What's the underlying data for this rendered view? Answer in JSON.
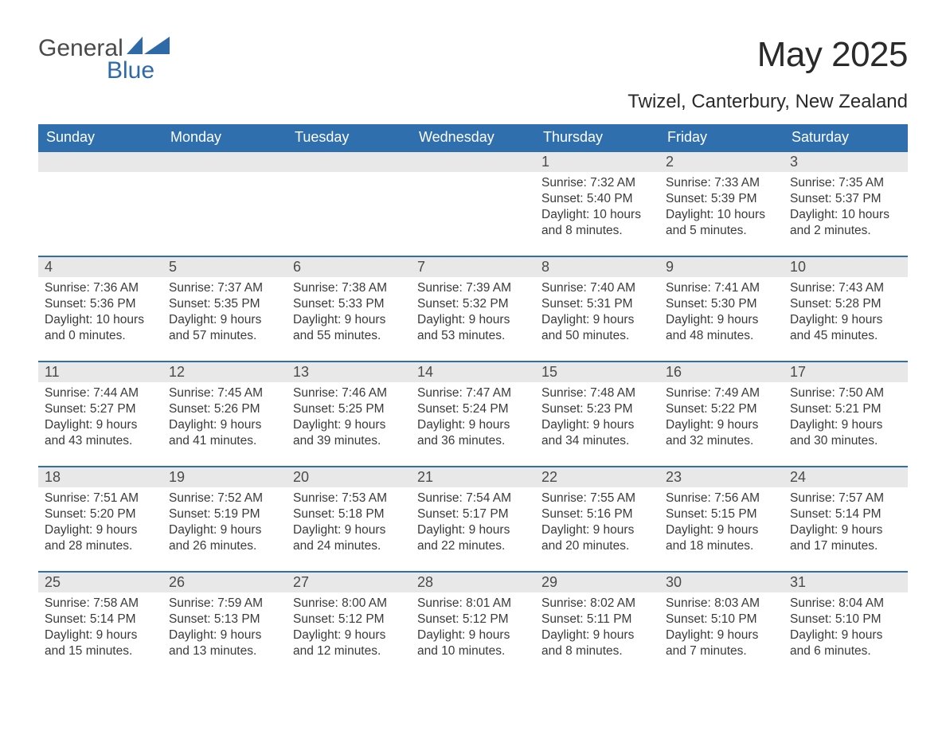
{
  "brand": {
    "word1": "General",
    "word2": "Blue"
  },
  "title": "May 2025",
  "location": "Twizel, Canterbury, New Zealand",
  "colors": {
    "header_bg": "#2f6fae",
    "header_text": "#ffffff",
    "row_border": "#2f6fae",
    "daynum_bg": "#e8e8e8",
    "daynum_text": "#4a4a4a",
    "body_text": "#3a3a3a",
    "page_bg": "#ffffff",
    "logo_gray": "#4a4a4a",
    "logo_blue": "#2f6aa8"
  },
  "typography": {
    "title_fontsize": 44,
    "location_fontsize": 24,
    "header_fontsize": 18,
    "daynum_fontsize": 18,
    "body_fontsize": 15.5,
    "font_family": "Arial"
  },
  "weekdays": [
    "Sunday",
    "Monday",
    "Tuesday",
    "Wednesday",
    "Thursday",
    "Friday",
    "Saturday"
  ],
  "labels": {
    "sunrise": "Sunrise: ",
    "sunset": "Sunset: ",
    "daylight": "Daylight: "
  },
  "weeks": [
    [
      null,
      null,
      null,
      null,
      {
        "day": "1",
        "sunrise": "7:32 AM",
        "sunset": "5:40 PM",
        "daylight": "10 hours and 8 minutes."
      },
      {
        "day": "2",
        "sunrise": "7:33 AM",
        "sunset": "5:39 PM",
        "daylight": "10 hours and 5 minutes."
      },
      {
        "day": "3",
        "sunrise": "7:35 AM",
        "sunset": "5:37 PM",
        "daylight": "10 hours and 2 minutes."
      }
    ],
    [
      {
        "day": "4",
        "sunrise": "7:36 AM",
        "sunset": "5:36 PM",
        "daylight": "10 hours and 0 minutes."
      },
      {
        "day": "5",
        "sunrise": "7:37 AM",
        "sunset": "5:35 PM",
        "daylight": "9 hours and 57 minutes."
      },
      {
        "day": "6",
        "sunrise": "7:38 AM",
        "sunset": "5:33 PM",
        "daylight": "9 hours and 55 minutes."
      },
      {
        "day": "7",
        "sunrise": "7:39 AM",
        "sunset": "5:32 PM",
        "daylight": "9 hours and 53 minutes."
      },
      {
        "day": "8",
        "sunrise": "7:40 AM",
        "sunset": "5:31 PM",
        "daylight": "9 hours and 50 minutes."
      },
      {
        "day": "9",
        "sunrise": "7:41 AM",
        "sunset": "5:30 PM",
        "daylight": "9 hours and 48 minutes."
      },
      {
        "day": "10",
        "sunrise": "7:43 AM",
        "sunset": "5:28 PM",
        "daylight": "9 hours and 45 minutes."
      }
    ],
    [
      {
        "day": "11",
        "sunrise": "7:44 AM",
        "sunset": "5:27 PM",
        "daylight": "9 hours and 43 minutes."
      },
      {
        "day": "12",
        "sunrise": "7:45 AM",
        "sunset": "5:26 PM",
        "daylight": "9 hours and 41 minutes."
      },
      {
        "day": "13",
        "sunrise": "7:46 AM",
        "sunset": "5:25 PM",
        "daylight": "9 hours and 39 minutes."
      },
      {
        "day": "14",
        "sunrise": "7:47 AM",
        "sunset": "5:24 PM",
        "daylight": "9 hours and 36 minutes."
      },
      {
        "day": "15",
        "sunrise": "7:48 AM",
        "sunset": "5:23 PM",
        "daylight": "9 hours and 34 minutes."
      },
      {
        "day": "16",
        "sunrise": "7:49 AM",
        "sunset": "5:22 PM",
        "daylight": "9 hours and 32 minutes."
      },
      {
        "day": "17",
        "sunrise": "7:50 AM",
        "sunset": "5:21 PM",
        "daylight": "9 hours and 30 minutes."
      }
    ],
    [
      {
        "day": "18",
        "sunrise": "7:51 AM",
        "sunset": "5:20 PM",
        "daylight": "9 hours and 28 minutes."
      },
      {
        "day": "19",
        "sunrise": "7:52 AM",
        "sunset": "5:19 PM",
        "daylight": "9 hours and 26 minutes."
      },
      {
        "day": "20",
        "sunrise": "7:53 AM",
        "sunset": "5:18 PM",
        "daylight": "9 hours and 24 minutes."
      },
      {
        "day": "21",
        "sunrise": "7:54 AM",
        "sunset": "5:17 PM",
        "daylight": "9 hours and 22 minutes."
      },
      {
        "day": "22",
        "sunrise": "7:55 AM",
        "sunset": "5:16 PM",
        "daylight": "9 hours and 20 minutes."
      },
      {
        "day": "23",
        "sunrise": "7:56 AM",
        "sunset": "5:15 PM",
        "daylight": "9 hours and 18 minutes."
      },
      {
        "day": "24",
        "sunrise": "7:57 AM",
        "sunset": "5:14 PM",
        "daylight": "9 hours and 17 minutes."
      }
    ],
    [
      {
        "day": "25",
        "sunrise": "7:58 AM",
        "sunset": "5:14 PM",
        "daylight": "9 hours and 15 minutes."
      },
      {
        "day": "26",
        "sunrise": "7:59 AM",
        "sunset": "5:13 PM",
        "daylight": "9 hours and 13 minutes."
      },
      {
        "day": "27",
        "sunrise": "8:00 AM",
        "sunset": "5:12 PM",
        "daylight": "9 hours and 12 minutes."
      },
      {
        "day": "28",
        "sunrise": "8:01 AM",
        "sunset": "5:12 PM",
        "daylight": "9 hours and 10 minutes."
      },
      {
        "day": "29",
        "sunrise": "8:02 AM",
        "sunset": "5:11 PM",
        "daylight": "9 hours and 8 minutes."
      },
      {
        "day": "30",
        "sunrise": "8:03 AM",
        "sunset": "5:10 PM",
        "daylight": "9 hours and 7 minutes."
      },
      {
        "day": "31",
        "sunrise": "8:04 AM",
        "sunset": "5:10 PM",
        "daylight": "9 hours and 6 minutes."
      }
    ]
  ]
}
